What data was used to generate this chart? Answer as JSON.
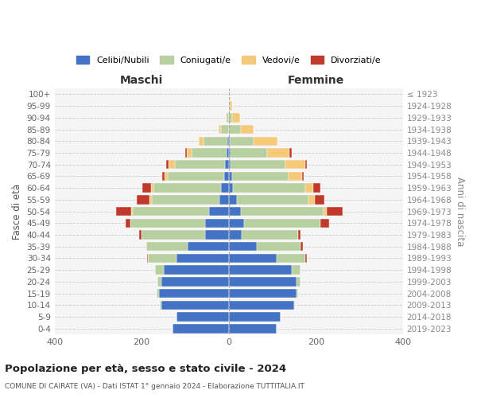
{
  "age_groups": [
    "100+",
    "95-99",
    "90-94",
    "85-89",
    "80-84",
    "75-79",
    "70-74",
    "65-69",
    "60-64",
    "55-59",
    "50-54",
    "45-49",
    "40-44",
    "35-39",
    "30-34",
    "25-29",
    "20-24",
    "15-19",
    "10-14",
    "5-9",
    "0-4"
  ],
  "birth_years": [
    "≤ 1923",
    "1924-1928",
    "1929-1933",
    "1934-1938",
    "1939-1943",
    "1944-1948",
    "1949-1953",
    "1954-1958",
    "1959-1963",
    "1964-1968",
    "1969-1973",
    "1974-1978",
    "1979-1983",
    "1984-1988",
    "1989-1993",
    "1994-1998",
    "1999-2003",
    "2004-2008",
    "2009-2013",
    "2014-2018",
    "2019-2023"
  ],
  "colors": {
    "celibi": "#4472c4",
    "coniugati": "#b8cfa0",
    "vedovi": "#f5c97a",
    "divorziati": "#c0392b"
  },
  "males": {
    "celibi": [
      0,
      0,
      0,
      0,
      3,
      5,
      8,
      10,
      18,
      22,
      45,
      55,
      55,
      95,
      120,
      150,
      155,
      160,
      155,
      120,
      130
    ],
    "coniugati": [
      0,
      0,
      5,
      18,
      55,
      80,
      115,
      130,
      155,
      155,
      175,
      170,
      145,
      95,
      65,
      20,
      8,
      5,
      3,
      0,
      0
    ],
    "vedovi": [
      0,
      0,
      2,
      5,
      10,
      12,
      15,
      8,
      5,
      5,
      4,
      0,
      0,
      0,
      0,
      0,
      0,
      0,
      0,
      0,
      0
    ],
    "divorziati": [
      0,
      0,
      0,
      0,
      0,
      3,
      5,
      5,
      20,
      30,
      35,
      12,
      5,
      0,
      3,
      0,
      0,
      0,
      0,
      0,
      0
    ]
  },
  "females": {
    "celibi": [
      0,
      0,
      0,
      0,
      2,
      4,
      5,
      8,
      10,
      18,
      28,
      35,
      30,
      65,
      110,
      145,
      155,
      155,
      150,
      120,
      110
    ],
    "coniugati": [
      0,
      3,
      8,
      28,
      55,
      85,
      125,
      130,
      165,
      165,
      190,
      175,
      130,
      100,
      65,
      20,
      10,
      5,
      3,
      0,
      0
    ],
    "vedovi": [
      0,
      5,
      18,
      30,
      55,
      50,
      45,
      30,
      20,
      15,
      8,
      0,
      0,
      0,
      0,
      0,
      0,
      0,
      0,
      0,
      0
    ],
    "divorziati": [
      0,
      0,
      0,
      0,
      0,
      5,
      5,
      5,
      15,
      22,
      35,
      20,
      5,
      5,
      5,
      0,
      0,
      0,
      0,
      0,
      0
    ]
  },
  "xlim": 400,
  "title": "Popolazione per età, sesso e stato civile - 2024",
  "subtitle": "COMUNE DI CAIRATE (VA) - Dati ISTAT 1° gennaio 2024 - Elaborazione TUTTITALIA.IT",
  "ylabel": "Fasce di età",
  "ylabel_right": "Anni di nascita",
  "xlabel_left": "Maschi",
  "xlabel_right": "Femmine",
  "bg_color": "#f5f5f5"
}
